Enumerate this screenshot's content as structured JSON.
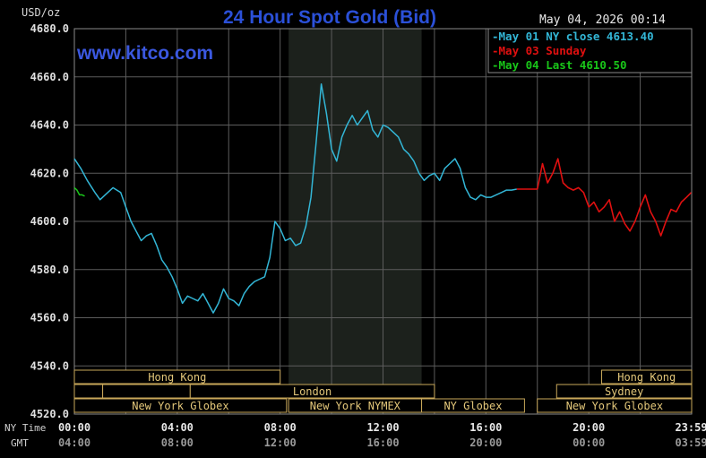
{
  "chart_data": {
    "type": "line",
    "title": "24 Hour Spot Gold (Bid)",
    "ylabel": "USD/oz",
    "watermark": "www.kitco.com",
    "timestamp": "May 04, 2026 00:14",
    "ylim": [
      4520,
      4680
    ],
    "xlim": [
      0,
      24
    ],
    "y_ticks": [
      4520,
      4540,
      4560,
      4580,
      4600,
      4620,
      4640,
      4660,
      4680
    ],
    "y_tick_labels": [
      "4520.0",
      "4540.0",
      "4560.0",
      "4580.0",
      "4600.0",
      "4620.0",
      "4640.0",
      "4660.0",
      "4680.0"
    ],
    "x_ticks": [
      0,
      4,
      8,
      12,
      16,
      20,
      23.983
    ],
    "x_row_labels": [
      "NY Time",
      "GMT"
    ],
    "x_tick_labels_ny": [
      "00:00",
      "04:00",
      "08:00",
      "12:00",
      "16:00",
      "20:00",
      "23:59"
    ],
    "x_tick_labels_gmt": [
      "04:00",
      "08:00",
      "12:00",
      "16:00",
      "20:00",
      "00:00",
      "03:59"
    ],
    "grid": true,
    "highlight_band": [
      8.33,
      13.5
    ],
    "legend_position": "top-right",
    "legend": [
      {
        "text": "May 01 NY close 4613.40",
        "color": "#33b6d6"
      },
      {
        "text": "May 03 Sunday",
        "color": "#e01010"
      },
      {
        "text": "May 04 Last 4610.50",
        "color": "#19c619"
      }
    ],
    "series": [
      {
        "color": "#33b6d6",
        "x": [
          0,
          0.25,
          0.5,
          0.8,
          1.0,
          1.2,
          1.5,
          1.8,
          2.0,
          2.2,
          2.4,
          2.6,
          2.8,
          3.0,
          3.2,
          3.4,
          3.6,
          3.8,
          4.0,
          4.2,
          4.4,
          4.6,
          4.8,
          5.0,
          5.2,
          5.4,
          5.6,
          5.8,
          6.0,
          6.2,
          6.4,
          6.6,
          6.8,
          7.0,
          7.2,
          7.4,
          7.6,
          7.8,
          8.0,
          8.2,
          8.4,
          8.6,
          8.8,
          9.0,
          9.2,
          9.4,
          9.6,
          9.8,
          10.0,
          10.2,
          10.4,
          10.6,
          10.8,
          11.0,
          11.2,
          11.4,
          11.6,
          11.8,
          12.0,
          12.2,
          12.4,
          12.6,
          12.8,
          13.0,
          13.2,
          13.4,
          13.6,
          13.8,
          14.0,
          14.2,
          14.4,
          14.6,
          14.8,
          15.0,
          15.2,
          15.4,
          15.6,
          15.8,
          16.0,
          16.2,
          16.4,
          16.6,
          16.8,
          17.0,
          17.2
        ],
        "y": [
          4626,
          4622,
          4617,
          4612,
          4609,
          4611,
          4614,
          4612,
          4606,
          4600,
          4596,
          4592,
          4594,
          4595,
          4590,
          4584,
          4581,
          4577,
          4572,
          4566,
          4569,
          4568,
          4567,
          4570,
          4566,
          4562,
          4566,
          4572,
          4568,
          4567,
          4565,
          4570,
          4573,
          4575,
          4576,
          4577,
          4585,
          4600,
          4597,
          4592,
          4593,
          4590,
          4591,
          4598,
          4610,
          4633,
          4657,
          4645,
          4630,
          4625,
          4635,
          4640,
          4644,
          4640,
          4643,
          4646,
          4638,
          4635,
          4640,
          4639,
          4637,
          4635,
          4630,
          4628,
          4625,
          4620,
          4617,
          4619,
          4620,
          4617,
          4622,
          4624,
          4626,
          4622,
          4614,
          4610,
          4609,
          4611,
          4610,
          4610,
          4611,
          4612,
          4613,
          4613,
          4613.4
        ]
      },
      {
        "color": "#e01010",
        "x": [
          17.2,
          17.5,
          18.0,
          18.2,
          18.4,
          18.6,
          18.8,
          19.0,
          19.2,
          19.4,
          19.6,
          19.8,
          20.0,
          20.2,
          20.4,
          20.6,
          20.8,
          21.0,
          21.2,
          21.4,
          21.6,
          21.8,
          22.0,
          22.2,
          22.4,
          22.6,
          22.8,
          23.0,
          23.2,
          23.4,
          23.6,
          23.8,
          23.983
        ],
        "y": [
          4613.4,
          4613.4,
          4613.4,
          4624,
          4616,
          4620,
          4626,
          4616,
          4614,
          4613,
          4614,
          4612,
          4606,
          4608,
          4604,
          4606,
          4609,
          4600,
          4604,
          4599,
          4596,
          4600,
          4606,
          4611,
          4604,
          4600,
          4594,
          4600,
          4605,
          4604,
          4608,
          4610,
          4612
        ]
      },
      {
        "color": "#19c619",
        "x": [
          0,
          0.1,
          0.2,
          0.3,
          0.4
        ],
        "y": [
          4614,
          4613,
          4611,
          4611,
          4610.5
        ]
      }
    ],
    "session_bars": [
      {
        "label": "Hong Kong",
        "start": 0,
        "end": 8
      },
      {
        "label": "London",
        "start": 4.5,
        "end": 14
      },
      {
        "label": "New York Globex",
        "start": 0,
        "end": 8.25
      },
      {
        "label": "New York NYMEX",
        "start": 8.33,
        "end": 13.5
      },
      {
        "label": "NY Globex",
        "start": 13.5,
        "end": 17.5
      },
      {
        "label": "Hong Kong",
        "start": 20.5,
        "end": 24
      },
      {
        "label": "Sydney",
        "start": 18.75,
        "end": 24
      },
      {
        "label": "New York Globex",
        "start": 18,
        "end": 24
      }
    ]
  }
}
